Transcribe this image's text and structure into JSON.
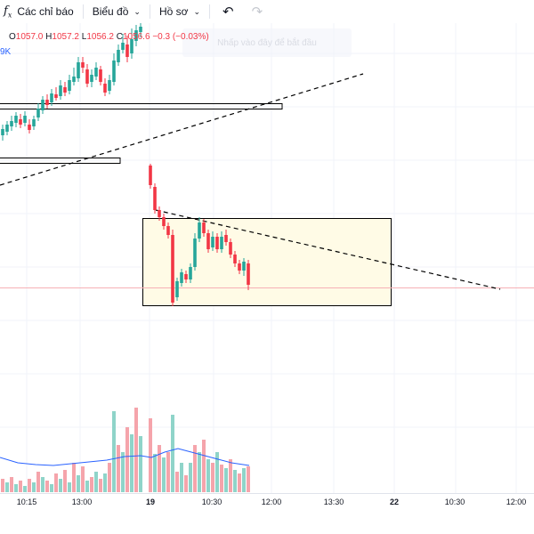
{
  "toolbar": {
    "indicators_label": "Các chỉ báo",
    "chart_label": "Biểu đồ",
    "profile_label": "Hồ sơ",
    "fx_icon_text": "f",
    "fx_sub": "x"
  },
  "legend": {
    "open_label": "O",
    "open": "1057.0",
    "high_label": "H",
    "high": "1057.2",
    "low_label": "L",
    "low": "1056.2",
    "close_label": "C",
    "close": "1056.6",
    "change": "−0.3 (−0.03%)",
    "volume_fragment": "9K",
    "ghost_text": "Nhấp vào đây để bắt đầu"
  },
  "x_axis": {
    "ticks": [
      {
        "label": "10:15",
        "bold": false
      },
      {
        "label": "13:00",
        "bold": false
      },
      {
        "label": "19",
        "bold": true
      },
      {
        "label": "10:30",
        "bold": false
      },
      {
        "label": "12:00",
        "bold": false
      },
      {
        "label": "13:30",
        "bold": false
      },
      {
        "label": "22",
        "bold": true
      },
      {
        "label": "10:30",
        "bold": false
      },
      {
        "label": "12:00",
        "bold": false
      }
    ]
  },
  "colors": {
    "up": "#26a69a",
    "down": "#f23645",
    "volume_up": "#8fd4c9",
    "volume_down": "#f5a4ab",
    "ma_line": "#2962ff",
    "box_fill": "#fffbe6",
    "price_line": "#f6b0b6"
  },
  "chart_data": {
    "type": "candlestick",
    "note_values": "approximate, read from pixels",
    "candles_shown": 60
  }
}
